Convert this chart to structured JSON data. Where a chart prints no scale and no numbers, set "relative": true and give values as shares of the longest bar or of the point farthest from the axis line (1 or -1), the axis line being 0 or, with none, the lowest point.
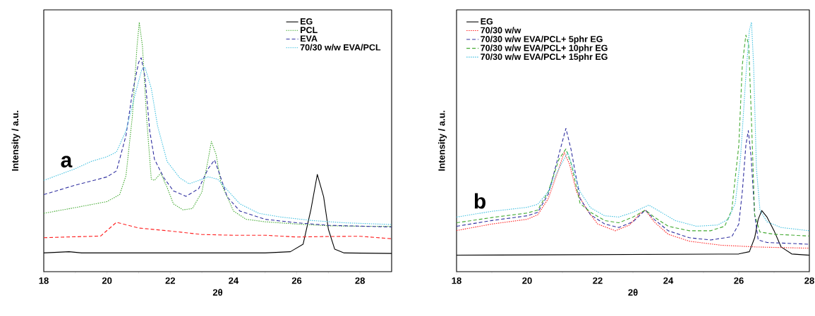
{
  "chart_data": [
    {
      "type": "line",
      "relative": true,
      "xlabel": "2θ",
      "ylabel": "Intensity / a.u.",
      "annotations": [
        "a"
      ],
      "xlim": [
        18,
        29
      ],
      "xticks": [
        18,
        20,
        22,
        24,
        26,
        28
      ],
      "legend": "top right",
      "grid": false,
      "series": [
        {
          "name": "EG",
          "color": "#000000",
          "line_style": "solid",
          "x": [
            18,
            18.8,
            19.2,
            25,
            25.8,
            26.2,
            26.45,
            26.65,
            26.85,
            27.0,
            27.2,
            27.5,
            29
          ],
          "values": [
            0.075,
            0.08,
            0.075,
            0.075,
            0.08,
            0.11,
            0.25,
            0.39,
            0.3,
            0.17,
            0.09,
            0.075,
            0.073
          ]
        },
        {
          "color": "#ff2020",
          "line_style": "dashed",
          "x": [
            18,
            19.8,
            20.3,
            21,
            22,
            23,
            24,
            25,
            26,
            27,
            28,
            29
          ],
          "values": [
            0.136,
            0.143,
            0.198,
            0.175,
            0.163,
            0.149,
            0.146,
            0.146,
            0.139,
            0.141,
            0.142,
            0.132
          ]
        },
        {
          "name": "PCL",
          "color": "#44aa33",
          "line_style": "dotted",
          "x": [
            18,
            19,
            20,
            20.4,
            20.6,
            20.8,
            20.95,
            21.02,
            21.12,
            21.25,
            21.4,
            21.5,
            21.7,
            21.9,
            22.1,
            22.4,
            22.7,
            23.0,
            23.2,
            23.3,
            23.45,
            23.6,
            24.0,
            24.4,
            25,
            26,
            27,
            28,
            29
          ],
          "values": [
            0.234,
            0.257,
            0.281,
            0.309,
            0.385,
            0.62,
            0.905,
            1.0,
            0.905,
            0.62,
            0.371,
            0.366,
            0.395,
            0.338,
            0.272,
            0.248,
            0.253,
            0.319,
            0.451,
            0.522,
            0.47,
            0.357,
            0.243,
            0.21,
            0.2,
            0.191,
            0.184,
            0.182,
            0.182
          ]
        },
        {
          "name": "EVA",
          "color": "#3030a0",
          "line_style": "dashed",
          "x": [
            18,
            19,
            20,
            20.3,
            20.6,
            20.8,
            21.0,
            21.08,
            21.2,
            21.35,
            21.5,
            21.8,
            22.1,
            22.5,
            22.9,
            23.2,
            23.4,
            23.55,
            23.8,
            24.2,
            25,
            26,
            27,
            29
          ],
          "values": [
            0.309,
            0.347,
            0.38,
            0.404,
            0.546,
            0.716,
            0.839,
            0.858,
            0.782,
            0.565,
            0.451,
            0.376,
            0.324,
            0.302,
            0.333,
            0.413,
            0.448,
            0.395,
            0.3,
            0.243,
            0.21,
            0.196,
            0.186,
            0.179
          ]
        },
        {
          "name": "70/30 w/w EVA/PCL",
          "color": "#40c0e0",
          "line_style": "dotted",
          "x": [
            18,
            19,
            19.5,
            20,
            20.3,
            20.6,
            20.9,
            21.1,
            21.2,
            21.4,
            21.6,
            21.9,
            22.3,
            22.6,
            22.9,
            23.2,
            23.5,
            23.8,
            24.2,
            24.8,
            25.5,
            26.5,
            27.5,
            29
          ],
          "values": [
            0.366,
            0.413,
            0.442,
            0.461,
            0.48,
            0.565,
            0.716,
            0.811,
            0.82,
            0.735,
            0.584,
            0.442,
            0.376,
            0.352,
            0.366,
            0.38,
            0.371,
            0.328,
            0.272,
            0.234,
            0.219,
            0.205,
            0.196,
            0.189
          ]
        }
      ]
    },
    {
      "type": "line",
      "relative": true,
      "xlabel": "2θ",
      "ylabel": "Intensity / a.u.",
      "annotations": [
        "b"
      ],
      "xlim": [
        18,
        28
      ],
      "xticks": [
        18,
        20,
        22,
        24,
        26,
        28
      ],
      "legend": "top left",
      "grid": false,
      "series": [
        {
          "name": "EG",
          "color": "#000000",
          "line_style": "solid",
          "x": [
            18,
            26.0,
            26.3,
            26.45,
            26.55,
            26.65,
            26.8,
            27.0,
            27.2,
            27.5,
            28
          ],
          "values": [
            0.066,
            0.071,
            0.08,
            0.136,
            0.21,
            0.245,
            0.219,
            0.164,
            0.099,
            0.071,
            0.066
          ]
        },
        {
          "name": "70/30 w/w",
          "color": "#ff2020",
          "line_style": "dotted",
          "x": [
            18,
            19,
            20,
            20.3,
            20.6,
            20.9,
            21.05,
            21.2,
            21.4,
            21.7,
            22.0,
            22.5,
            22.9,
            23.2,
            23.35,
            23.6,
            24,
            24.6,
            25.5,
            26.5,
            28
          ],
          "values": [
            0.165,
            0.191,
            0.21,
            0.228,
            0.293,
            0.413,
            0.478,
            0.432,
            0.321,
            0.247,
            0.191,
            0.164,
            0.187,
            0.233,
            0.247,
            0.2,
            0.15,
            0.122,
            0.106,
            0.099,
            0.094
          ]
        },
        {
          "name": "70/30 w/w EVA/PCL+ 5phr EG",
          "color": "#3030a0",
          "line_style": "dashed",
          "x": [
            18,
            19,
            20,
            20.3,
            20.6,
            20.9,
            21.1,
            21.25,
            21.5,
            21.8,
            22.2,
            22.6,
            23.0,
            23.35,
            23.6,
            24,
            24.6,
            25.2,
            25.8,
            26.0,
            26.1,
            26.2,
            26.27,
            26.35,
            26.45,
            26.55,
            26.8,
            28
          ],
          "values": [
            0.182,
            0.205,
            0.224,
            0.238,
            0.311,
            0.469,
            0.575,
            0.487,
            0.293,
            0.228,
            0.191,
            0.177,
            0.2,
            0.247,
            0.21,
            0.164,
            0.136,
            0.127,
            0.14,
            0.191,
            0.321,
            0.506,
            0.566,
            0.459,
            0.228,
            0.127,
            0.117,
            0.11
          ]
        },
        {
          "name": "70/30 w/w EVA/PCL+ 10phr EG",
          "color": "#44aa33",
          "line_style": "dashed",
          "x": [
            18,
            19,
            20,
            20.3,
            20.6,
            20.9,
            21.1,
            21.25,
            21.5,
            21.8,
            22.2,
            22.6,
            23.0,
            23.35,
            23.6,
            24,
            24.6,
            25.2,
            25.6,
            25.8,
            26.0,
            26.1,
            26.2,
            26.28,
            26.35,
            26.45,
            26.6,
            27,
            28
          ],
          "values": [
            0.196,
            0.217,
            0.235,
            0.247,
            0.321,
            0.45,
            0.492,
            0.432,
            0.274,
            0.238,
            0.205,
            0.196,
            0.219,
            0.247,
            0.219,
            0.182,
            0.164,
            0.164,
            0.182,
            0.247,
            0.506,
            0.829,
            0.949,
            0.912,
            0.644,
            0.228,
            0.159,
            0.15,
            0.143
          ]
        },
        {
          "name": "70/30 w/w EVA/PCL+ 15phr EG",
          "color": "#40c0e0",
          "line_style": "dotted",
          "x": [
            18,
            19,
            20,
            20.3,
            20.6,
            20.9,
            21.15,
            21.3,
            21.5,
            21.8,
            22.2,
            22.6,
            23.0,
            23.45,
            23.8,
            24.2,
            24.8,
            25.4,
            25.7,
            25.9,
            26.05,
            26.2,
            26.3,
            26.36,
            26.42,
            26.5,
            26.6,
            26.8,
            27.2,
            28
          ],
          "values": [
            0.219,
            0.242,
            0.258,
            0.27,
            0.321,
            0.413,
            0.478,
            0.413,
            0.321,
            0.256,
            0.224,
            0.219,
            0.238,
            0.267,
            0.238,
            0.205,
            0.182,
            0.187,
            0.21,
            0.274,
            0.459,
            0.783,
            0.968,
            1.0,
            0.829,
            0.413,
            0.247,
            0.2,
            0.177,
            0.164
          ]
        }
      ]
    }
  ]
}
